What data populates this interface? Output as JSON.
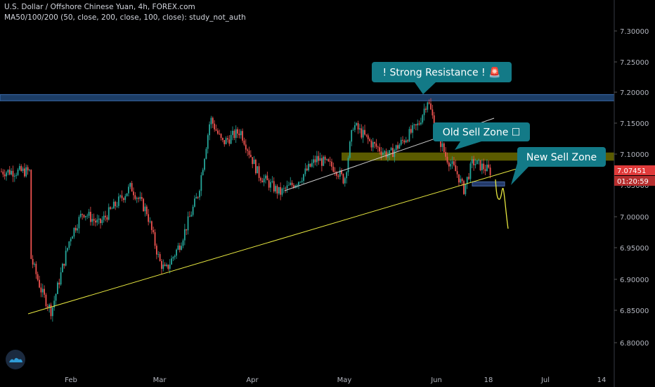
{
  "header": {
    "title": "U.S. Dollar / Offshore Chinese Yuan, 4h, FOREX.com",
    "study": "MA50/100/200 (50, close, 200, close, 100, close): study_not_auth"
  },
  "colors": {
    "up": "#26a69a",
    "down": "#ef5350",
    "callout": "#137a87",
    "resistance_zone": "#1c3d66",
    "sell_zone": "#6b6b00",
    "trendline": "#e8e840",
    "inner_trendline": "#cfcfcf",
    "price_badge": "#e03a3a"
  },
  "annotations": {
    "resistance_label": "! Strong Resistance ! 🚨",
    "old_sell_zone_label": "Old Sell Zone ☐",
    "new_sell_zone_label": "New Sell Zone"
  },
  "price_badges": {
    "last_price": "7.07451",
    "countdown": "01:20:59"
  },
  "logo_icon": "tradingview-cloud-icon",
  "chart_data": {
    "type": "candlestick",
    "title": "U.S. Dollar / Offshore Chinese Yuan, 4h, FOREX.com",
    "y_ticks": [
      "7.30000",
      "7.25000",
      "7.20000",
      "7.15000",
      "7.10000",
      "7.05000",
      "7.00000",
      "6.95000",
      "6.90000",
      "6.85000",
      "6.80000"
    ],
    "x_ticks": [
      "Feb",
      "Mar",
      "Apr",
      "May",
      "Jun",
      "18",
      "Jul",
      "14"
    ],
    "ylim": [
      6.765,
      7.34
    ],
    "price_path": [
      [
        "Jan 15",
        6.94
      ],
      [
        "Jan 20",
        6.88
      ],
      [
        "Jan 24",
        6.85
      ],
      [
        "Feb 1",
        6.97
      ],
      [
        "Feb 5",
        7.01
      ],
      [
        "Feb 10",
        6.99
      ],
      [
        "Feb 15",
        7.02
      ],
      [
        "Feb 20",
        7.05
      ],
      [
        "Feb 25",
        7.01
      ],
      [
        "Mar 1",
        6.93
      ],
      [
        "Mar 3",
        6.915
      ],
      [
        "Mar 8",
        6.96
      ],
      [
        "Mar 14",
        7.04
      ],
      [
        "Mar 18",
        7.16
      ],
      [
        "Mar 22",
        7.12
      ],
      [
        "Mar 28",
        7.14
      ],
      [
        "Apr 3",
        7.07
      ],
      [
        "Apr 10",
        7.04
      ],
      [
        "Apr 16",
        7.06
      ],
      [
        "Apr 22",
        7.095
      ],
      [
        "Apr 28",
        7.08
      ],
      [
        "May 1",
        7.06
      ],
      [
        "May 4",
        7.15
      ],
      [
        "May 10",
        7.12
      ],
      [
        "May 16",
        7.1
      ],
      [
        "May 22",
        7.13
      ],
      [
        "May 26",
        7.15
      ],
      [
        "May 29",
        7.19
      ],
      [
        "Jun 1",
        7.14
      ],
      [
        "Jun 4",
        7.1
      ],
      [
        "Jun 8",
        7.07
      ],
      [
        "Jun 10",
        7.045
      ],
      [
        "Jun 13",
        7.09
      ],
      [
        "Jun 17",
        7.08
      ],
      [
        "Jun 19",
        7.07451
      ]
    ],
    "projection": [
      [
        7.07451,
        7.03,
        7.06,
        6.98
      ]
    ],
    "zones": {
      "strong_resistance": [
        7.188,
        7.198
      ],
      "old_sell_zone": [
        7.092,
        7.105
      ],
      "new_sell_zone": [
        7.053,
        7.058
      ]
    },
    "trendlines": {
      "ascending_support": [
        [
          6.846,
          7.072
        ]
      ],
      "channel_line": [
        [
          7.037,
          7.158
        ]
      ]
    },
    "grid": false,
    "legend": "none"
  }
}
